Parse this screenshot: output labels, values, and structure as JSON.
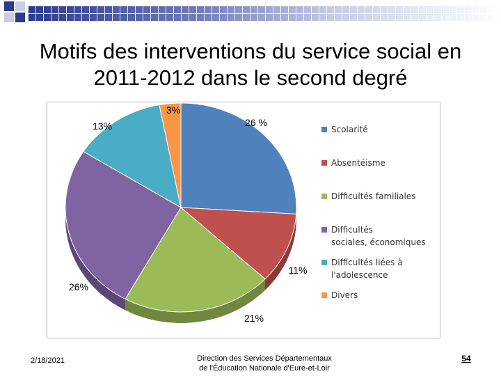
{
  "slide": {
    "title_line1": "Motifs des interventions du service social en",
    "title_line2": "2011-2012 dans le second degré",
    "date": "2/18/2021",
    "footer_line1": "Direction des Services Départementaux",
    "footer_line2": "de l'Éducation Nationale d'Eure-et-Loir",
    "page_number": "54"
  },
  "colors": {
    "scolarite": "#4f81bd",
    "absenteisme": "#c0504d",
    "familiales": "#9bbb59",
    "sociales": "#8064a2",
    "adolescence": "#4bacc6",
    "divers": "#f79646"
  },
  "chart_data": {
    "type": "pie",
    "title": "",
    "legend_position": "right",
    "slices": [
      {
        "key": "scolarite",
        "legend": "Scolarité",
        "value": 26,
        "label": "26 %"
      },
      {
        "key": "absenteisme",
        "legend": "Absentéisme",
        "value": 11,
        "label": "11%"
      },
      {
        "key": "familiales",
        "legend": "Difficultés familiales",
        "value": 21,
        "label": "21%"
      },
      {
        "key": "sociales",
        "legend": "Difficultés sociales, économiques",
        "value": 26,
        "label": "26%"
      },
      {
        "key": "adolescence",
        "legend": "Difficultés liées à l'adolescence",
        "value": 13,
        "label": "13%"
      },
      {
        "key": "divers",
        "legend": "Divers",
        "value": 3,
        "label": "3%"
      }
    ]
  }
}
